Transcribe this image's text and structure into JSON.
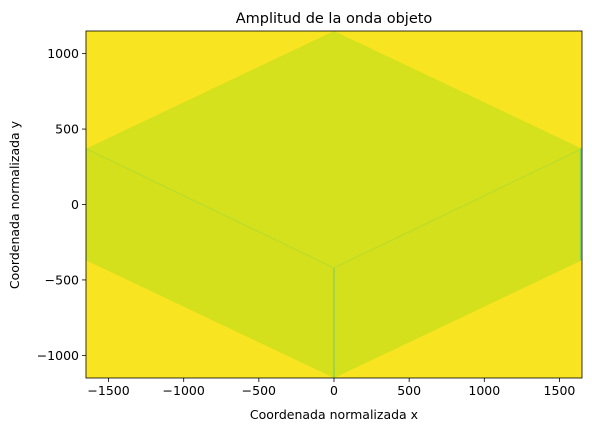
{
  "chart_data": {
    "type": "heatmap",
    "title": "Amplitud de la onda objeto",
    "xlabel": "Coordenada normalizada x",
    "ylabel": "Coordenada normalizada y",
    "xlim": [
      -1650,
      1650
    ],
    "ylim": [
      -1150,
      1150
    ],
    "xticks": [
      -1500,
      -1000,
      -500,
      0,
      500,
      1000,
      1500
    ],
    "yticks": [
      -1000,
      -500,
      0,
      500,
      1000
    ],
    "xtick_labels": [
      "−1500",
      "−1000",
      "−500",
      "0",
      "500",
      "1000",
      "1500"
    ],
    "ytick_labels": [
      "−1000",
      "−500",
      "0",
      "500",
      "1000"
    ],
    "grid": false,
    "background_value_color": "#f9e421",
    "regions": [
      {
        "name": "upper-face",
        "color": "#d5e11c",
        "polygon": [
          [
            0,
            1150
          ],
          [
            1650,
            370
          ],
          [
            0,
            -420
          ],
          [
            -1650,
            370
          ]
        ]
      },
      {
        "name": "left-face",
        "color": "#d4e01b",
        "polygon": [
          [
            -1650,
            370
          ],
          [
            0,
            -420
          ],
          [
            0,
            -1150
          ],
          [
            -1650,
            -370
          ]
        ]
      },
      {
        "name": "right-face",
        "color": "#d4e01b",
        "polygon": [
          [
            1650,
            370
          ],
          [
            0,
            -420
          ],
          [
            0,
            -1150
          ],
          [
            1650,
            -370
          ]
        ]
      }
    ],
    "edges": [
      {
        "name": "vertical-center-edge",
        "color": "#7dd05a",
        "points": [
          [
            0,
            -420
          ],
          [
            0,
            -1150
          ]
        ]
      },
      {
        "name": "left-inner-edge",
        "color": "#bcdc2c",
        "points": [
          [
            -1650,
            370
          ],
          [
            0,
            -420
          ]
        ]
      },
      {
        "name": "right-inner-edge",
        "color": "#bcdc2c",
        "points": [
          [
            0,
            -420
          ],
          [
            1650,
            370
          ]
        ]
      },
      {
        "name": "right-border-edge",
        "color": "#7dd05a",
        "points": [
          [
            1640,
            370
          ],
          [
            1640,
            -370
          ]
        ]
      }
    ]
  }
}
